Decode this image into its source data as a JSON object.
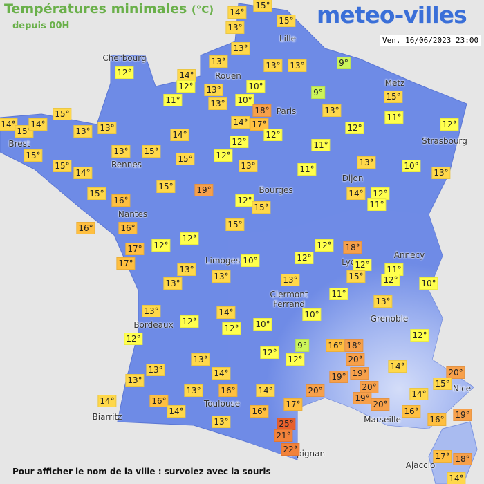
{
  "header": {
    "title": "Températures minimales",
    "title_unit": "(°C)",
    "subtitle": "depuis 00H",
    "brand": "meteo-villes",
    "date": "Ven. 16/06/2023 23:00"
  },
  "cities": [
    "Cherbourg",
    "Rouen",
    "Lille",
    "Metz",
    "Paris",
    "Strasbourg",
    "Brest",
    "Rennes",
    "Dijon",
    "Bourges",
    "Nantes",
    "Limoges",
    "Annecy",
    "Lyon",
    "Clermont Ferrand",
    "Grenoble",
    "Bordeaux",
    "Nice",
    "Toulouse",
    "Biarritz",
    "Marseille",
    "Perpignan",
    "Ajaccio"
  ],
  "temperatures": [
    "14°",
    "15°",
    "13°",
    "15°",
    "13°",
    "12°",
    "14°",
    "13°",
    "13°",
    "13°",
    "9°",
    "12°",
    "13°",
    "10°",
    "9°",
    "15°",
    "11°",
    "13°",
    "10°",
    "18°",
    "13°",
    "15°",
    "14°",
    "15°",
    "14°",
    "13°",
    "13°",
    "14°",
    "17°",
    "12°",
    "12°",
    "11°",
    "12°",
    "14°",
    "15°",
    "13°",
    "15°",
    "12°",
    "11°",
    "15°",
    "14°",
    "15°",
    "12°",
    "13°",
    "13°",
    "10°",
    "13°",
    "11°",
    "15°",
    "16°",
    "15°",
    "19°",
    "14°",
    "12°",
    "11°",
    "12°",
    "15°",
    "16°",
    "16°",
    "15°",
    "12°",
    "12°",
    "17°",
    "17°",
    "12°",
    "18°",
    "13°",
    "10°",
    "12°",
    "12°",
    "11°",
    "15°",
    "12°",
    "13°",
    "13°",
    "10°",
    "13°",
    "11°",
    "13°",
    "13°",
    "14°",
    "10°",
    "12°",
    "12°",
    "10°",
    "12°",
    "12°",
    "9°",
    "16°",
    "18°",
    "12°",
    "12°",
    "13°",
    "20°",
    "14°",
    "20°",
    "13°",
    "14°",
    "19°",
    "19°",
    "15°",
    "13°",
    "20°",
    "20°",
    "13°",
    "16°",
    "14°",
    "14°",
    "19°",
    "14°",
    "16°",
    "17°",
    "20°",
    "14°",
    "16°",
    "16°",
    "19°",
    "16°",
    "13°",
    "25°",
    "21°",
    "22°",
    "17°",
    "18°",
    "14°"
  ],
  "footer": "Pour afficher le nom de la ville : survolez avec la souris"
}
